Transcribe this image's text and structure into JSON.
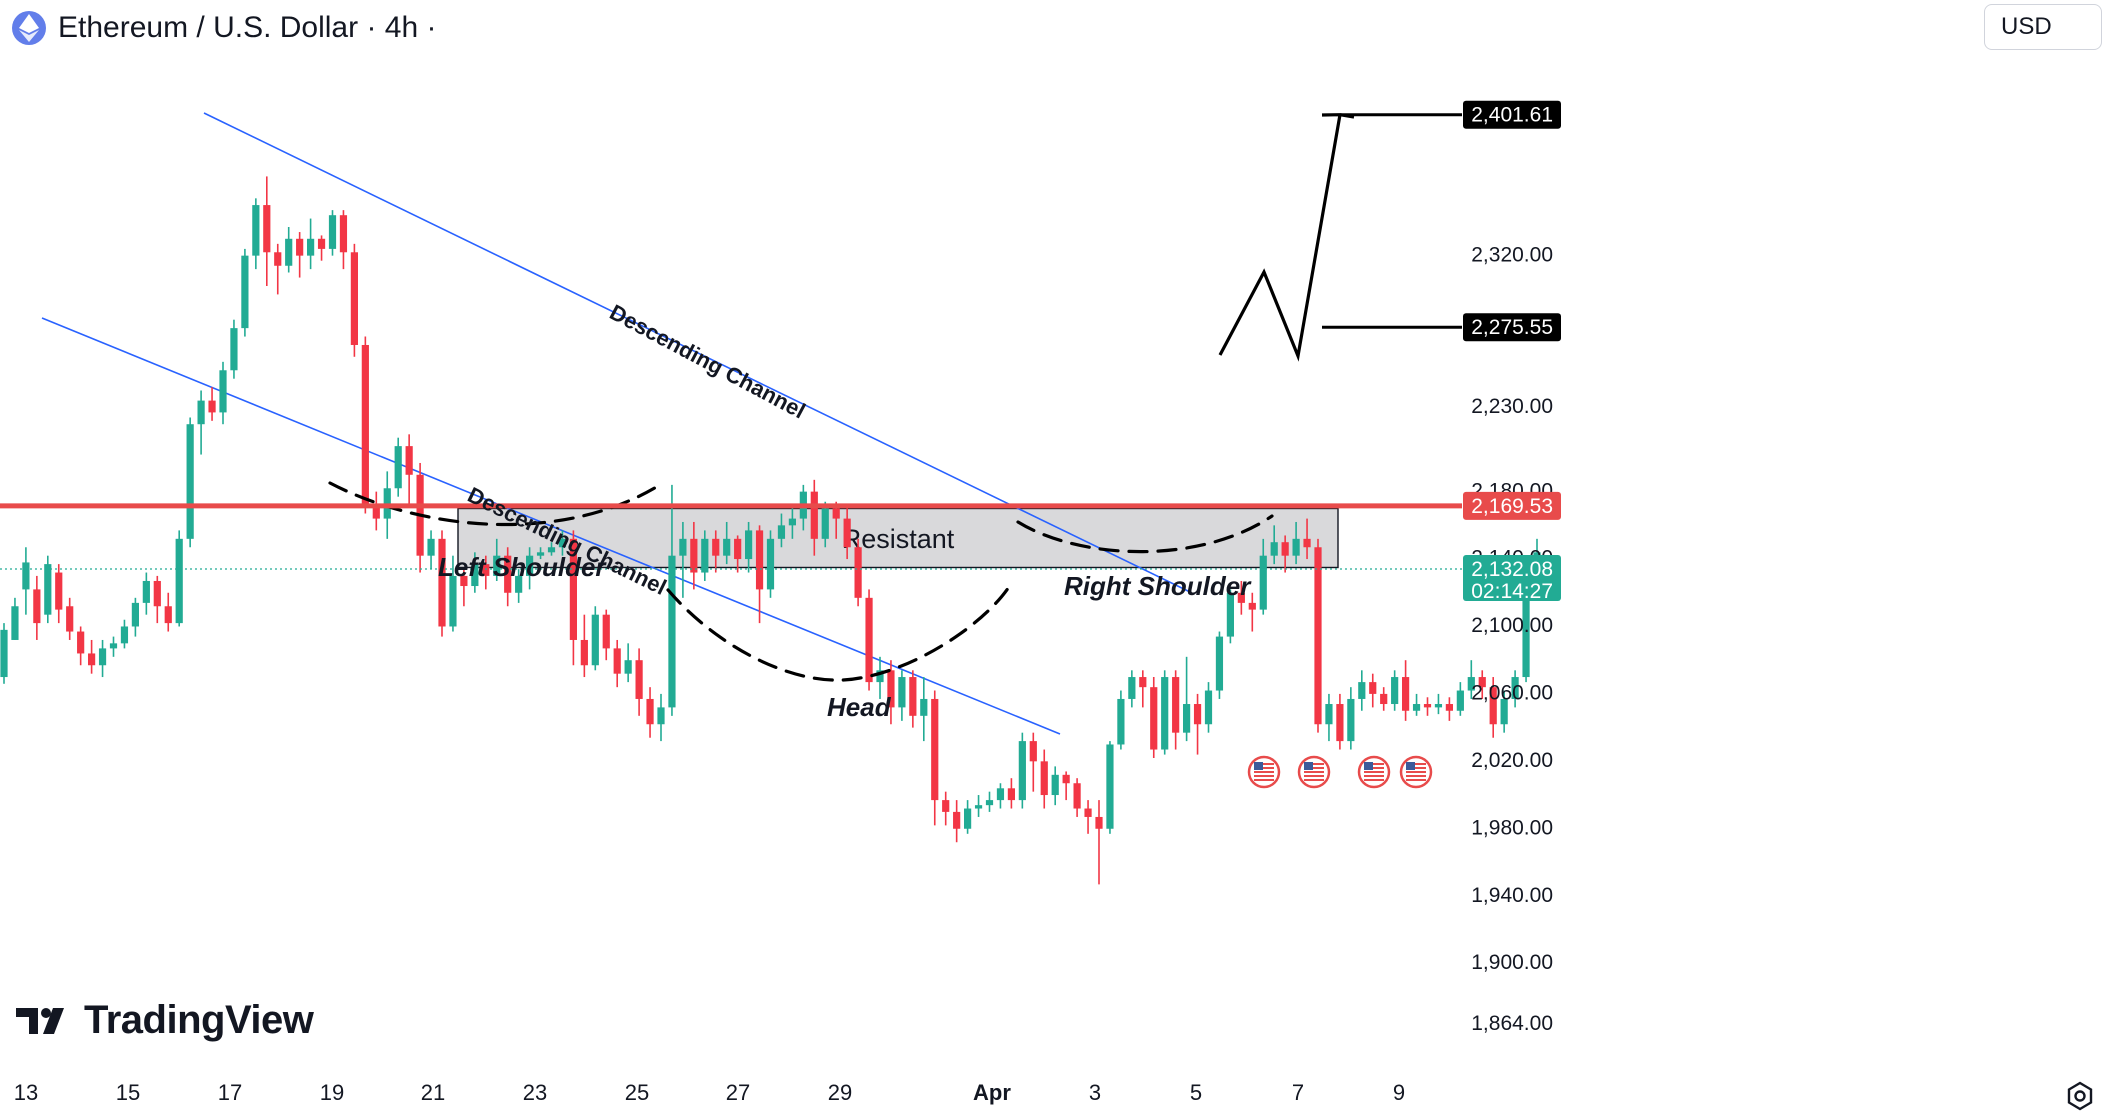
{
  "header": {
    "title": "Ethereum / U.S. Dollar · 4h ·",
    "currency": "USD"
  },
  "brand": {
    "name": "TradingView"
  },
  "colors": {
    "up": "#22ab94",
    "down": "#f23645",
    "resistance_line": "#e84b4b",
    "channel": "#2962ff",
    "zone_fill": "#d9d9db",
    "projection": "#000000"
  },
  "chart_data": {
    "type": "candlestick",
    "symbol": "ETH/USD",
    "timeframe": "4h",
    "ylim": [
      1842,
      2440
    ],
    "y_ticks": [
      "2,320.00",
      "2,275.55",
      "2,230.00",
      "2,180.00",
      "2,169.53",
      "2,140.00",
      "2,132.08",
      "2,100.00",
      "2,060.00",
      "2,020.00",
      "1,980.00",
      "1,940.00",
      "1,900.00",
      "1,864.00"
    ],
    "x_ticks": [
      "13",
      "15",
      "17",
      "19",
      "21",
      "23",
      "25",
      "27",
      "29",
      "Apr",
      "3",
      "5",
      "7",
      "9"
    ],
    "candles": [
      [
        2068,
        2096,
        2064,
        2100
      ],
      [
        2090,
        2110,
        2090,
        2115
      ],
      [
        2120,
        2136,
        2105,
        2145
      ],
      [
        2120,
        2100,
        2090,
        2128
      ],
      [
        2105,
        2135,
        2100,
        2140
      ],
      [
        2130,
        2108,
        2100,
        2135
      ],
      [
        2110,
        2095,
        2090,
        2115
      ],
      [
        2095,
        2082,
        2075,
        2098
      ],
      [
        2082,
        2075,
        2070,
        2090
      ],
      [
        2075,
        2085,
        2068,
        2090
      ],
      [
        2085,
        2088,
        2080,
        2092
      ],
      [
        2088,
        2098,
        2085,
        2102
      ],
      [
        2098,
        2112,
        2092,
        2115
      ],
      [
        2112,
        2125,
        2105,
        2130
      ],
      [
        2125,
        2110,
        2100,
        2128
      ],
      [
        2110,
        2100,
        2095,
        2118
      ],
      [
        2100,
        2150,
        2098,
        2155
      ],
      [
        2150,
        2218,
        2145,
        2222
      ],
      [
        2218,
        2232,
        2200,
        2238
      ],
      [
        2232,
        2225,
        2220,
        2240
      ],
      [
        2225,
        2250,
        2218,
        2255
      ],
      [
        2250,
        2275,
        2245,
        2280
      ],
      [
        2275,
        2318,
        2270,
        2322
      ],
      [
        2318,
        2348,
        2310,
        2352
      ],
      [
        2348,
        2320,
        2300,
        2365
      ],
      [
        2320,
        2312,
        2295,
        2325
      ],
      [
        2312,
        2328,
        2308,
        2335
      ],
      [
        2328,
        2318,
        2305,
        2332
      ],
      [
        2318,
        2328,
        2310,
        2340
      ],
      [
        2328,
        2322,
        2315,
        2330
      ],
      [
        2322,
        2342,
        2318,
        2345
      ],
      [
        2342,
        2320,
        2310,
        2345
      ],
      [
        2320,
        2265,
        2258,
        2325
      ],
      [
        2265,
        2170,
        2165,
        2270
      ],
      [
        2170,
        2162,
        2155,
        2178
      ],
      [
        2162,
        2180,
        2150,
        2190
      ],
      [
        2180,
        2205,
        2175,
        2210
      ],
      [
        2205,
        2188,
        2170,
        2212
      ],
      [
        2188,
        2140,
        2130,
        2195
      ],
      [
        2140,
        2150,
        2132,
        2155
      ],
      [
        2150,
        2098,
        2092,
        2155
      ],
      [
        2098,
        2128,
        2095,
        2140
      ],
      [
        2128,
        2122,
        2110,
        2132
      ],
      [
        2122,
        2135,
        2118,
        2142
      ],
      [
        2135,
        2128,
        2120,
        2140
      ],
      [
        2128,
        2140,
        2125,
        2150
      ],
      [
        2140,
        2118,
        2110,
        2145
      ],
      [
        2118,
        2128,
        2112,
        2132
      ],
      [
        2128,
        2140,
        2120,
        2145
      ],
      [
        2140,
        2142,
        2138,
        2145
      ],
      [
        2142,
        2145,
        2140,
        2148
      ],
      [
        2145,
        2150,
        2140,
        2155
      ],
      [
        2150,
        2090,
        2075,
        2155
      ],
      [
        2090,
        2075,
        2068,
        2105
      ],
      [
        2075,
        2105,
        2072,
        2110
      ],
      [
        2105,
        2085,
        2078,
        2108
      ],
      [
        2085,
        2070,
        2062,
        2090
      ],
      [
        2070,
        2078,
        2065,
        2088
      ],
      [
        2078,
        2055,
        2045,
        2085
      ],
      [
        2055,
        2040,
        2032,
        2062
      ],
      [
        2040,
        2050,
        2030,
        2058
      ],
      [
        2050,
        2140,
        2045,
        2182
      ],
      [
        2140,
        2150,
        2115,
        2160
      ],
      [
        2150,
        2130,
        2120,
        2160
      ],
      [
        2130,
        2150,
        2125,
        2155
      ],
      [
        2150,
        2140,
        2130,
        2155
      ],
      [
        2140,
        2150,
        2135,
        2160
      ],
      [
        2150,
        2138,
        2130,
        2152
      ],
      [
        2138,
        2155,
        2130,
        2160
      ],
      [
        2155,
        2120,
        2100,
        2158
      ],
      [
        2120,
        2150,
        2115,
        2155
      ],
      [
        2150,
        2158,
        2145,
        2165
      ],
      [
        2158,
        2162,
        2150,
        2170
      ],
      [
        2162,
        2178,
        2155,
        2182
      ],
      [
        2178,
        2150,
        2140,
        2185
      ],
      [
        2150,
        2168,
        2145,
        2172
      ],
      [
        2168,
        2162,
        2150,
        2172
      ],
      [
        2162,
        2145,
        2138,
        2168
      ],
      [
        2145,
        2115,
        2110,
        2150
      ],
      [
        2115,
        2065,
        2060,
        2120
      ],
      [
        2065,
        2072,
        2055,
        2080
      ],
      [
        2072,
        2050,
        2040,
        2078
      ],
      [
        2050,
        2068,
        2042,
        2072
      ],
      [
        2068,
        2045,
        2038,
        2072
      ],
      [
        2045,
        2055,
        2030,
        2068
      ],
      [
        2055,
        1995,
        1980,
        2060
      ],
      [
        1995,
        1988,
        1980,
        2000
      ],
      [
        1988,
        1978,
        1970,
        1995
      ],
      [
        1978,
        1990,
        1975,
        1995
      ],
      [
        1990,
        1992,
        1985,
        1998
      ],
      [
        1992,
        1995,
        1988,
        2000
      ],
      [
        1995,
        2002,
        1990,
        2005
      ],
      [
        2002,
        1995,
        1990,
        2008
      ],
      [
        1995,
        2030,
        1990,
        2035
      ],
      [
        2030,
        2018,
        2000,
        2035
      ],
      [
        2018,
        1998,
        1990,
        2025
      ],
      [
        1998,
        2010,
        1992,
        2015
      ],
      [
        2010,
        2005,
        1995,
        2012
      ],
      [
        2005,
        1990,
        1985,
        2008
      ],
      [
        1990,
        1985,
        1975,
        1995
      ],
      [
        1985,
        1978,
        1945,
        1995
      ],
      [
        1978,
        2028,
        1975,
        2030
      ],
      [
        2028,
        2055,
        2025,
        2060
      ],
      [
        2055,
        2068,
        2050,
        2072
      ],
      [
        2068,
        2062,
        2050,
        2072
      ],
      [
        2062,
        2025,
        2020,
        2068
      ],
      [
        2025,
        2068,
        2022,
        2072
      ],
      [
        2068,
        2035,
        2025,
        2072
      ],
      [
        2035,
        2052,
        2030,
        2080
      ],
      [
        2052,
        2040,
        2022,
        2058
      ],
      [
        2040,
        2060,
        2035,
        2065
      ],
      [
        2060,
        2092,
        2055,
        2095
      ],
      [
        2092,
        2118,
        2088,
        2120
      ],
      [
        2118,
        2112,
        2105,
        2125
      ],
      [
        2112,
        2108,
        2095,
        2118
      ],
      [
        2108,
        2140,
        2105,
        2150
      ],
      [
        2140,
        2148,
        2135,
        2158
      ],
      [
        2148,
        2140,
        2130,
        2152
      ],
      [
        2140,
        2150,
        2135,
        2160
      ],
      [
        2150,
        2145,
        2138,
        2162
      ],
      [
        2145,
        2040,
        2035,
        2150
      ],
      [
        2040,
        2052,
        2030,
        2058
      ],
      [
        2052,
        2030,
        2025,
        2058
      ],
      [
        2030,
        2055,
        2025,
        2062
      ],
      [
        2055,
        2065,
        2048,
        2072
      ],
      [
        2065,
        2058,
        2050,
        2070
      ],
      [
        2058,
        2052,
        2048,
        2062
      ],
      [
        2052,
        2068,
        2048,
        2072
      ],
      [
        2068,
        2048,
        2042,
        2078
      ],
      [
        2048,
        2052,
        2045,
        2058
      ],
      [
        2052,
        2050,
        2045,
        2056
      ],
      [
        2050,
        2052,
        2046,
        2058
      ],
      [
        2052,
        2048,
        2042,
        2056
      ],
      [
        2048,
        2060,
        2045,
        2065
      ],
      [
        2060,
        2068,
        2055,
        2078
      ],
      [
        2068,
        2062,
        2055,
        2072
      ],
      [
        2062,
        2040,
        2032,
        2068
      ],
      [
        2040,
        2055,
        2035,
        2060
      ],
      [
        2055,
        2068,
        2050,
        2072
      ],
      [
        2068,
        2125,
        2065,
        2130
      ],
      [
        2125,
        2142,
        2120,
        2150
      ],
      [
        2132,
        2132,
        2130,
        2136
      ]
    ],
    "levels": [
      {
        "label": "2,401.61",
        "value": 2401.61
      },
      {
        "label": "2,275.55",
        "value": 2275.55
      },
      {
        "label": "2,169.53",
        "value": 2169.53
      },
      {
        "label": "2,132.08",
        "value": 2132.08,
        "sublabel": "02:14:27"
      }
    ],
    "zone": {
      "label": "Resistant",
      "from": 2133,
      "to": 2168
    },
    "annotations": [
      "Descending Channel",
      "Descending Channel",
      "Left Shoulder",
      "Head",
      "Right Shoulder"
    ]
  }
}
